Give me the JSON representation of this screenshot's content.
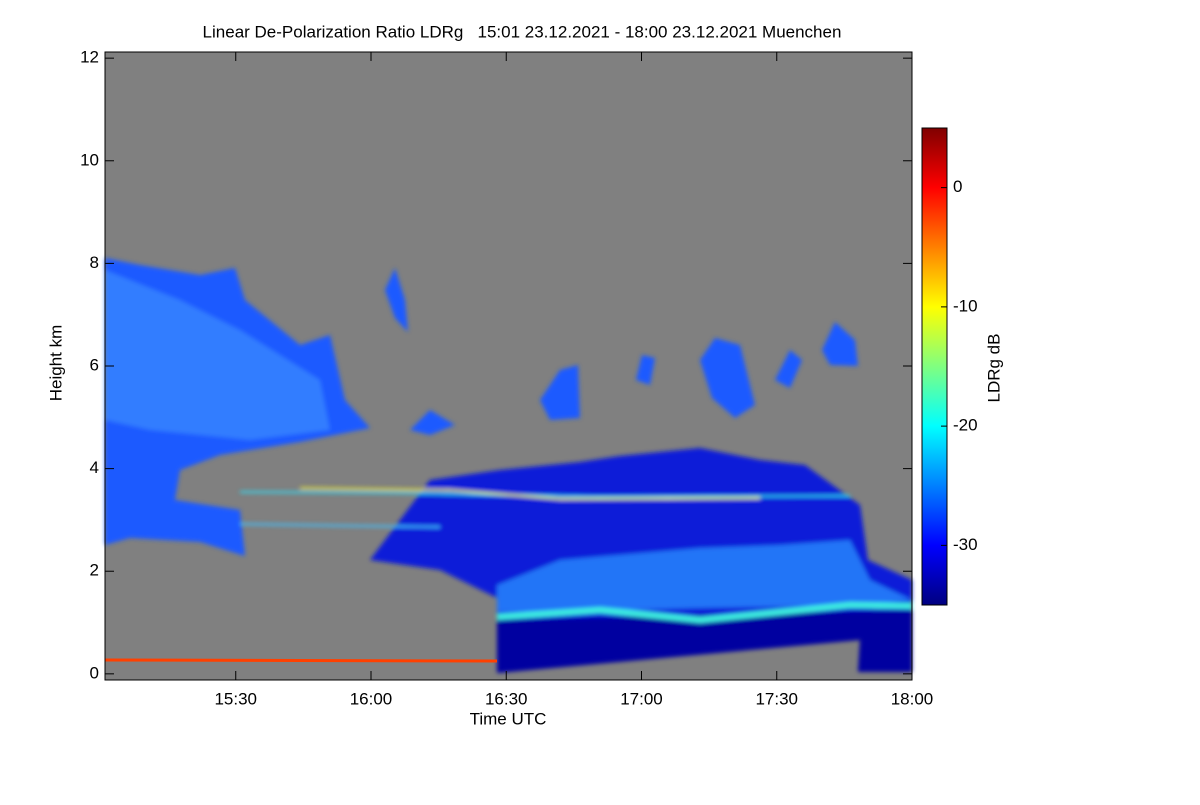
{
  "chart_data": {
    "type": "heatmap",
    "title": "Linear De-Polarization Ratio LDRg   15:01 23.12.2021 - 18:00 23.12.2021 Muenchen",
    "x_label": "Time UTC",
    "y_label": "Height km",
    "colorbar_label": "LDRg dB",
    "xlim": [
      901,
      1080
    ],
    "xticks": [
      {
        "value": 930,
        "label": "15:30"
      },
      {
        "value": 960,
        "label": "16:00"
      },
      {
        "value": 990,
        "label": "16:30"
      },
      {
        "value": 1020,
        "label": "17:00"
      },
      {
        "value": 1050,
        "label": "17:30"
      },
      {
        "value": 1080,
        "label": "18:00"
      }
    ],
    "ylim": [
      -0.12,
      12.12
    ],
    "yticks": [
      0,
      2,
      4,
      6,
      8,
      10,
      12
    ],
    "clim": [
      -35,
      5
    ],
    "cticks": [
      0,
      -10,
      -20,
      -30
    ],
    "colorscale": [
      "#000080",
      "#0000ff",
      "#0080ff",
      "#00ffff",
      "#80ff80",
      "#ffff00",
      "#ff8000",
      "#ff0000",
      "#800000"
    ]
  }
}
